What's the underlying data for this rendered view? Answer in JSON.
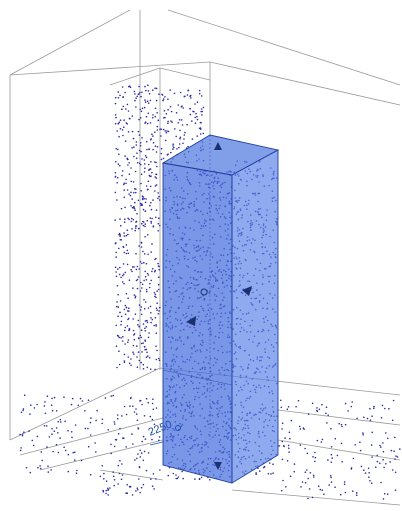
{
  "viewport": {
    "dimension_label": "2250"
  }
}
